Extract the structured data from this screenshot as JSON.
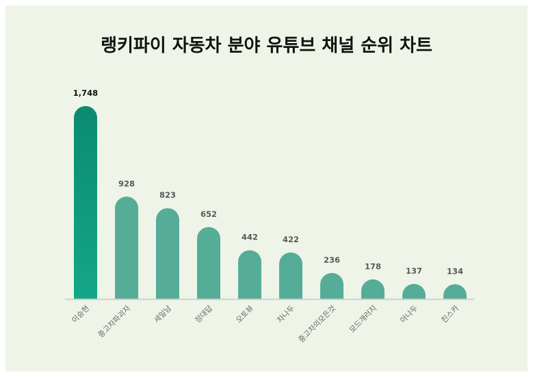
{
  "title": "랭키파이 자동차 분야 유튜브 채널 순위 차트",
  "colors": {
    "background": "#eef5e8",
    "bar_top": "#5aaf9a",
    "bar": "#55ad98",
    "top_bar_gradient_start": "#0b8a72",
    "top_bar_gradient_end": "#13a787",
    "baseline": "#cfcfcf",
    "label_dark": "#111111",
    "label_muted": "#5a5a5a",
    "category_label": "#666666"
  },
  "chart_data": {
    "type": "bar",
    "title": "랭키파이 자동차 분야 유튜브 채널 순위 차트",
    "categories": [
      "이승현",
      "중고차파괴자",
      "세일남",
      "정대답",
      "오토뷰",
      "차나두",
      "중고차의모든것",
      "모드개러지",
      "아나두",
      "친스카"
    ],
    "values": [
      1748,
      928,
      823,
      652,
      442,
      422,
      236,
      178,
      137,
      134
    ],
    "value_labels": [
      "1,748",
      "928",
      "823",
      "652",
      "442",
      "422",
      "236",
      "178",
      "137",
      "134"
    ],
    "ylim": [
      0,
      1748
    ],
    "grid": false,
    "legend": "none",
    "xlabel": "",
    "ylabel": ""
  }
}
